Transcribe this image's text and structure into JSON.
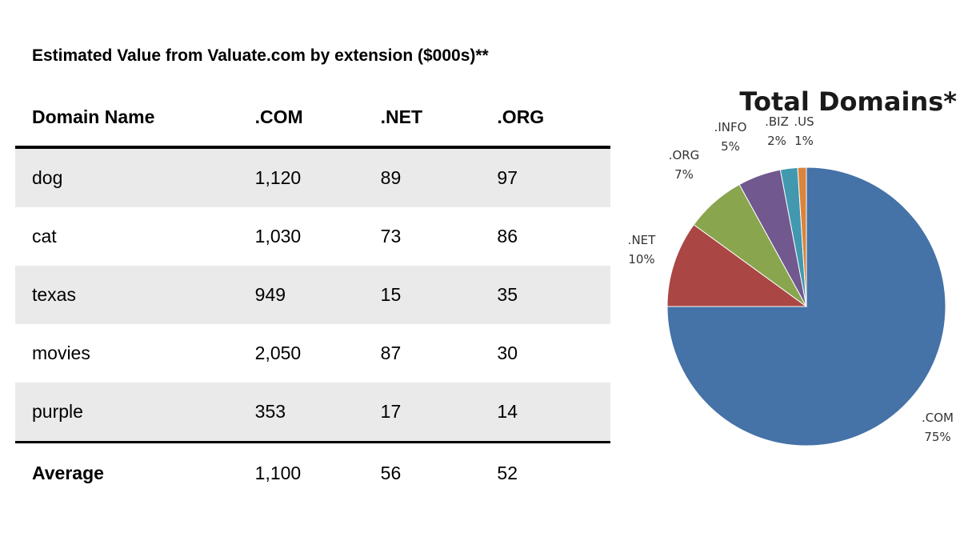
{
  "table": {
    "title": "Estimated Value from Valuate.com by extension ($000s)**",
    "headers": [
      "Domain Name",
      ".COM",
      ".NET",
      ".ORG"
    ],
    "rows": [
      [
        "dog",
        "1,120",
        "89",
        "97"
      ],
      [
        "cat",
        "1,030",
        "73",
        "86"
      ],
      [
        "texas",
        "949",
        "15",
        "35"
      ],
      [
        "movies",
        "2,050",
        "87",
        "30"
      ],
      [
        "purple",
        "353",
        "17",
        "14"
      ]
    ],
    "footer": [
      "Average",
      "1,100",
      "56",
      "52"
    ]
  },
  "chart_data": {
    "type": "pie",
    "title": "Total Domains*",
    "start_angle_deg": 0,
    "direction": "clockwise",
    "slices": [
      {
        "name": ".COM",
        "value": 75,
        "label": "75%",
        "color": "#4572a7"
      },
      {
        "name": ".NET",
        "value": 10,
        "label": "10%",
        "color": "#aa4643"
      },
      {
        "name": ".ORG",
        "value": 7,
        "label": "7%",
        "color": "#89a54e"
      },
      {
        "name": ".INFO",
        "value": 5,
        "label": "5%",
        "color": "#71588f"
      },
      {
        "name": ".BIZ",
        "value": 2,
        "label": "2%",
        "color": "#4198af"
      },
      {
        "name": ".US",
        "value": 1,
        "label": "1%",
        "color": "#db843d"
      }
    ]
  }
}
